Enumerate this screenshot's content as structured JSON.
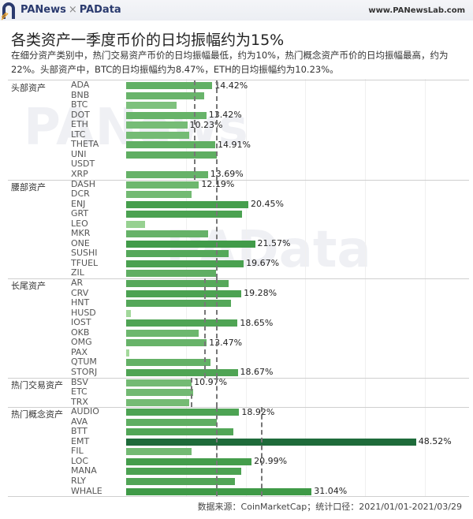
{
  "header": {
    "brand_left": "PANews",
    "brand_sep": "×",
    "brand_right": "PAData",
    "site": "www.PANewsLab.com"
  },
  "title": "各类资产一季度币价的日均振幅约为15%",
  "subtitle": "在细分资产类别中，热门交易资产币价的日均振幅最低，约为10%，热门概念资产币价的日均振幅最高，约为22%。头部资产中，BTC的日均振幅约为8.47%，ETH的日均振幅约为10.23%。",
  "footer": "数据来源：CoinMarketCap；统计口径：2021/01/01-2021/03/29",
  "watermarks": {
    "w1": "PANews",
    "w2": "PAData"
  },
  "colors": {
    "light": "#a6da9e",
    "dark": "#3f9a47",
    "max": "#1e6b3a",
    "ref": "#777777"
  },
  "chart_data": {
    "type": "bar",
    "orientation": "horizontal",
    "title": "各类资产一季度币价的日均振幅约为15%",
    "unit": "%",
    "xlim": [
      0,
      50
    ],
    "overall_reference": 15,
    "groups": [
      {
        "name": "头部资产",
        "average": 11.3,
        "items": [
          {
            "name": "ADA",
            "value": 14.42,
            "label": "14.42%"
          },
          {
            "name": "BNB",
            "value": 13.0
          },
          {
            "name": "BTC",
            "value": 8.47
          },
          {
            "name": "DOT",
            "value": 13.42,
            "label": "13.42%"
          },
          {
            "name": "ETH",
            "value": 10.23,
            "label": "10.23%"
          },
          {
            "name": "LTC",
            "value": 10.6
          },
          {
            "name": "THETA",
            "value": 14.91,
            "label": "14.91%"
          },
          {
            "name": "UNI",
            "value": 15.2
          },
          {
            "name": "USDT",
            "value": 0
          },
          {
            "name": "XRP",
            "value": 13.69,
            "label": "13.69%"
          }
        ]
      },
      {
        "name": "腰部资产",
        "average": 15.1,
        "items": [
          {
            "name": "DASH",
            "value": 12.19,
            "label": "12.19%"
          },
          {
            "name": "DCR",
            "value": 10.9
          },
          {
            "name": "ENJ",
            "value": 20.45,
            "label": "20.45%"
          },
          {
            "name": "GRT",
            "value": 19.4
          },
          {
            "name": "LEO",
            "value": 3.2
          },
          {
            "name": "MKR",
            "value": 13.7
          },
          {
            "name": "ONE",
            "value": 21.57,
            "label": "21.57%"
          },
          {
            "name": "SUSHI",
            "value": 17.2
          },
          {
            "name": "TFUEL",
            "value": 19.67,
            "label": "19.67%"
          },
          {
            "name": "ZIL",
            "value": 15.0
          }
        ]
      },
      {
        "name": "长尾资产",
        "average": 13.1,
        "items": [
          {
            "name": "AR",
            "value": 17.1
          },
          {
            "name": "CRV",
            "value": 19.28,
            "label": "19.28%"
          },
          {
            "name": "HNT",
            "value": 17.5
          },
          {
            "name": "HUSD",
            "value": 0.8
          },
          {
            "name": "IOST",
            "value": 18.65,
            "label": "18.65%"
          },
          {
            "name": "OKB",
            "value": 12.1
          },
          {
            "name": "OMG",
            "value": 13.47,
            "label": "13.47%"
          },
          {
            "name": "PAX",
            "value": 0.5
          },
          {
            "name": "QTUM",
            "value": 14.1
          },
          {
            "name": "STORJ",
            "value": 18.67,
            "label": "18.67%"
          }
        ]
      },
      {
        "name": "热门交易资产",
        "average": 10.8,
        "items": [
          {
            "name": "BSV",
            "value": 10.97,
            "label": "10.97%"
          },
          {
            "name": "ETC",
            "value": 11.2
          },
          {
            "name": "TRX",
            "value": 10.5
          }
        ]
      },
      {
        "name": "热门概念资产",
        "average": 22.5,
        "items": [
          {
            "name": "AUDIO",
            "value": 18.92,
            "label": "18.92%"
          },
          {
            "name": "AVA",
            "value": 15.2
          },
          {
            "name": "BTT",
            "value": 18.0
          },
          {
            "name": "EMT",
            "value": 48.52,
            "label": "48.52%"
          },
          {
            "name": "FIL",
            "value": 11.0
          },
          {
            "name": "LOC",
            "value": 20.99,
            "label": "20.99%"
          },
          {
            "name": "MANA",
            "value": 19.2
          },
          {
            "name": "RLY",
            "value": 18.2
          },
          {
            "name": "WHALE",
            "value": 31.04,
            "label": "31.04%"
          }
        ]
      }
    ]
  }
}
